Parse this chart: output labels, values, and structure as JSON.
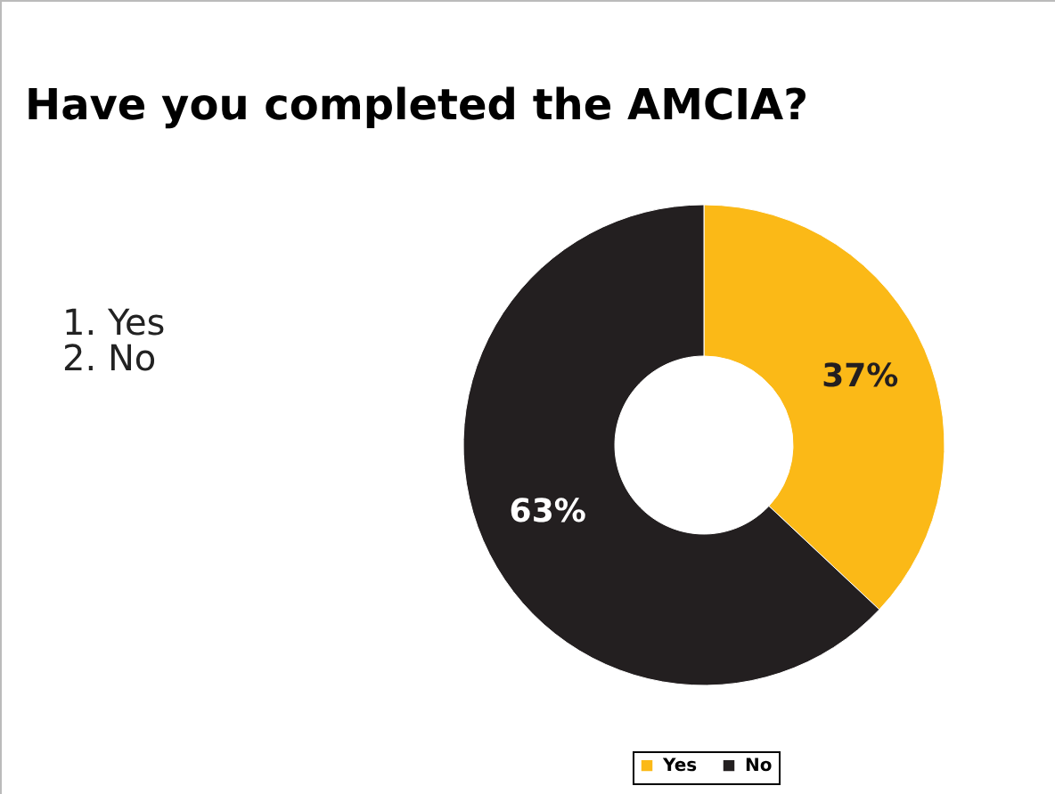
{
  "chart_data": {
    "type": "donut",
    "title": "Have you completed the AMCIA?",
    "categories": [
      "Yes",
      "No"
    ],
    "values": [
      37,
      63
    ],
    "colors": [
      "#fbb917",
      "#231f20"
    ],
    "value_labels": [
      "37%",
      "63%"
    ],
    "legend": "bottom",
    "annotations": [
      "1. Yes",
      "2. No"
    ]
  }
}
